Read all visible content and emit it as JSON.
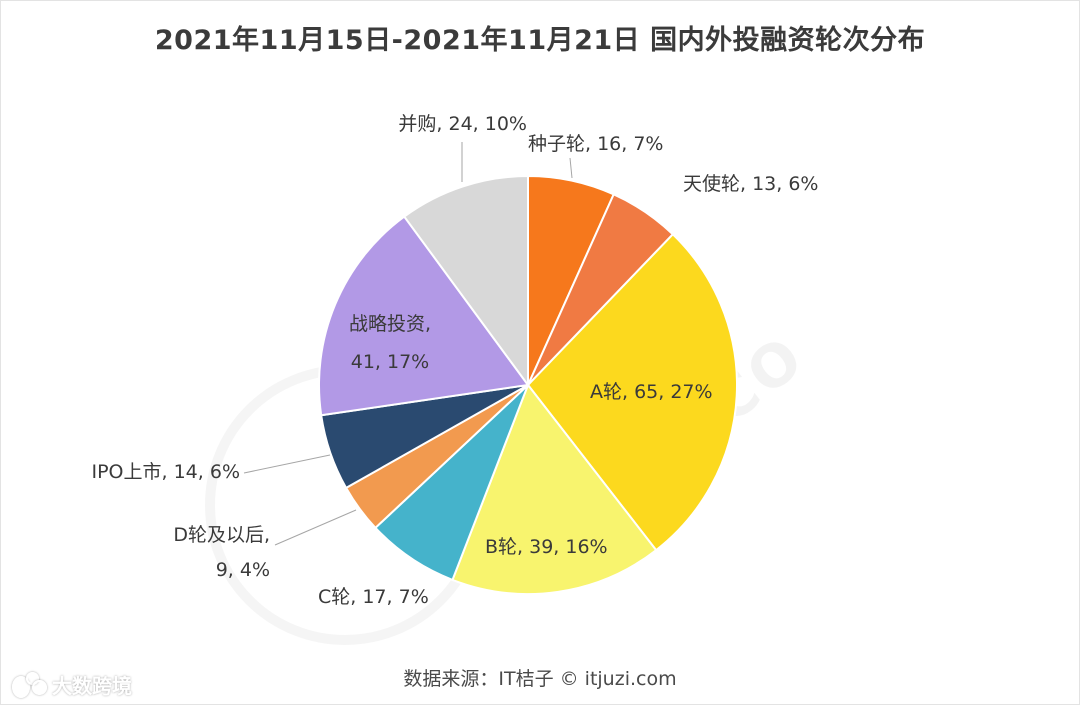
{
  "title": "2021年11月15日-2021年11月21日 国内外投融资轮次分布",
  "source": "数据来源：IT桔子 © itjuzi.com",
  "brand": "大数跨境",
  "watermark": "ITJUZI.CO",
  "chart_data": {
    "type": "pie",
    "title": "2021年11月15日-2021年11月21日 国内外投融资轮次分布",
    "start_angle_deg": 0,
    "direction": "clockwise",
    "slices": [
      {
        "name": "种子轮",
        "value": 16,
        "percent": "7%",
        "color": "#F6781C",
        "label": "种子轮, 16, 7%"
      },
      {
        "name": "天使轮",
        "value": 13,
        "percent": "6%",
        "color": "#F07A43",
        "label": "天使轮, 13, 6%"
      },
      {
        "name": "A轮",
        "value": 65,
        "percent": "27%",
        "color": "#FCD91E",
        "label": "A轮, 65, 27%"
      },
      {
        "name": "B轮",
        "value": 39,
        "percent": "16%",
        "color": "#F8F46E",
        "label": "B轮, 39, 16%"
      },
      {
        "name": "C轮",
        "value": 17,
        "percent": "7%",
        "color": "#45B3CB",
        "label": "C轮, 17, 7%"
      },
      {
        "name": "D轮及以后",
        "value": 9,
        "percent": "4%",
        "color": "#F29A4F",
        "label_lines": [
          "D轮及以后,",
          "9, 4%"
        ]
      },
      {
        "name": "IPO上市",
        "value": 14,
        "percent": "6%",
        "color": "#2A4A70",
        "label": "IPO上市, 14, 6%"
      },
      {
        "name": "战略投资",
        "value": 41,
        "percent": "17%",
        "color": "#B299E6",
        "label_lines": [
          "战略投资,",
          "41, 17%"
        ]
      },
      {
        "name": "并购",
        "value": 24,
        "percent": "10%",
        "color": "#D8D8D8",
        "label": "并购, 24, 10%"
      }
    ]
  }
}
